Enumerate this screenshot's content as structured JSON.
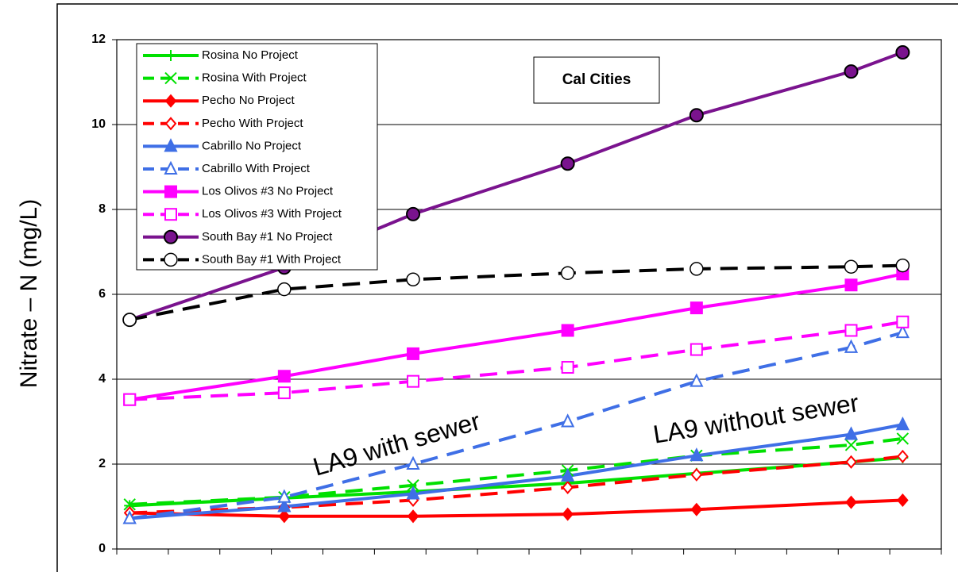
{
  "chart_data": {
    "type": "line",
    "y_label": "Nitrate – N (mg/L)",
    "annotations": [
      "Cal Cities",
      "LA9 with sewer",
      "LA9 without sewer"
    ],
    "x": [
      0.25,
      3.25,
      5.75,
      8.75,
      11.25,
      14.25,
      15.25
    ],
    "xlim": [
      0,
      16
    ],
    "xticks": [
      0,
      1,
      2,
      3,
      4,
      5,
      6,
      7,
      8,
      9,
      10,
      11,
      12,
      13,
      14,
      15,
      16
    ],
    "ylim": [
      0,
      12
    ],
    "yticks": [
      0,
      2,
      4,
      6,
      8,
      10,
      12
    ],
    "grid": true,
    "series": [
      {
        "name": "Rosina No Project",
        "color": "#00e000",
        "dash": false,
        "marker": "plus",
        "values": [
          1.02,
          1.2,
          1.35,
          1.55,
          1.78,
          2.05,
          2.15
        ]
      },
      {
        "name": "Rosina With Project",
        "color": "#00e000",
        "dash": true,
        "marker": "cross",
        "values": [
          1.05,
          1.22,
          1.5,
          1.85,
          2.2,
          2.45,
          2.6
        ]
      },
      {
        "name": "Pecho No Project",
        "color": "#ff0000",
        "dash": false,
        "marker": "diamond",
        "values": [
          0.85,
          0.77,
          0.77,
          0.82,
          0.93,
          1.1,
          1.15
        ]
      },
      {
        "name": "Pecho With Project",
        "color": "#ff0000",
        "dash": true,
        "marker": "diamond-open",
        "values": [
          0.85,
          0.98,
          1.15,
          1.45,
          1.75,
          2.05,
          2.18
        ]
      },
      {
        "name": "Cabrillo No Project",
        "color": "#3f6fe6",
        "dash": false,
        "marker": "triangle",
        "values": [
          0.72,
          1.0,
          1.3,
          1.72,
          2.2,
          2.7,
          2.93
        ]
      },
      {
        "name": "Cabrillo With Project",
        "color": "#3f6fe6",
        "dash": true,
        "marker": "triangle-open",
        "values": [
          0.72,
          1.22,
          2.0,
          3.0,
          3.95,
          4.75,
          5.1
        ]
      },
      {
        "name": "Los Olivos #3 No Project",
        "color": "#ff00ff",
        "dash": false,
        "marker": "square",
        "values": [
          3.52,
          4.07,
          4.6,
          5.15,
          5.68,
          6.22,
          6.48
        ]
      },
      {
        "name": "Los Olivos #3 With Project",
        "color": "#ff00ff",
        "dash": true,
        "marker": "square-open",
        "values": [
          3.52,
          3.68,
          3.95,
          4.28,
          4.7,
          5.15,
          5.35
        ]
      },
      {
        "name": "South Bay #1 No Project",
        "color": "#7a138e",
        "dash": false,
        "marker": "circle",
        "values": [
          5.4,
          6.63,
          7.89,
          9.08,
          10.22,
          11.25,
          11.7
        ]
      },
      {
        "name": "South Bay #1 With Project",
        "color": "#000000",
        "dash": true,
        "marker": "circle-open",
        "values": [
          5.4,
          6.12,
          6.35,
          6.5,
          6.6,
          6.65,
          6.68
        ]
      }
    ]
  }
}
